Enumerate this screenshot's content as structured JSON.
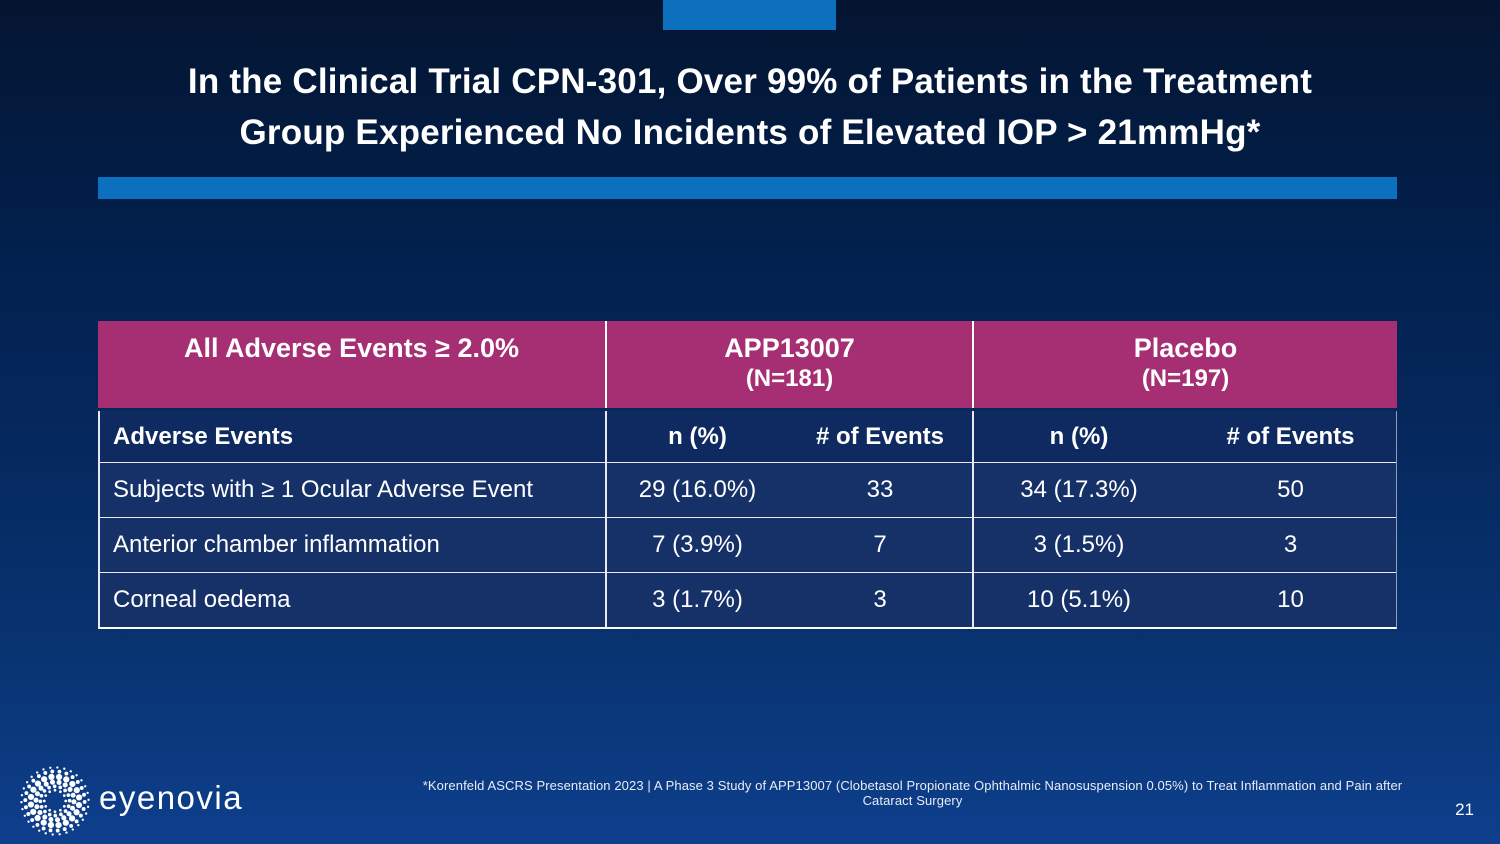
{
  "slide": {
    "title_line1": "In the Clinical Trial CPN-301, Over 99% of Patients in the Treatment",
    "title_line2": "Group Experienced No Incidents of Elevated IOP > 21mmHg*",
    "footnote": "*Korenfeld ASCRS Presentation 2023 | A Phase 3 Study of APP13007 (Clobetasol Propionate Ophthalmic Nanosuspension 0.05%) to Treat Inflammation and Pain after Cataract Surgery",
    "page_number": "21",
    "logo_text": "eyenovia"
  },
  "colors": {
    "accent_blue": "#0c70be",
    "header_magenta": "#a62e72",
    "subheader_navy": "#0f2a60",
    "row_navy": "#153168",
    "background_top": "#041531",
    "background_bottom": "#0e3f8d"
  },
  "table": {
    "group_headers": [
      {
        "label": "All Adverse Events ≥ 2.0%",
        "sub": ""
      },
      {
        "label": "APP13007",
        "sub": "(N=181)"
      },
      {
        "label": "Placebo",
        "sub": "(N=197)"
      }
    ],
    "column_headers": [
      "Adverse Events",
      "n (%)",
      "# of Events",
      "n (%)",
      "# of Events"
    ],
    "rows": [
      [
        "Subjects with ≥ 1 Ocular Adverse Event",
        "29 (16.0%)",
        "33",
        "34 (17.3%)",
        "50"
      ],
      [
        "Anterior chamber inflammation",
        "7 (3.9%)",
        "7",
        "3 (1.5%)",
        "3"
      ],
      [
        "Corneal oedema",
        "3 (1.7%)",
        "3",
        "10 (5.1%)",
        "10"
      ]
    ]
  }
}
